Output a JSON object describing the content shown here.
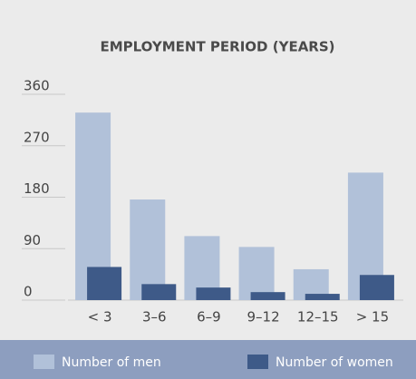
{
  "chart_data": {
    "type": "bar",
    "title": "EMPLOYMENT PERIOD (YEARS)",
    "categories": [
      "< 3",
      "3–6",
      "6–9",
      "9–12",
      "12–15",
      "> 15"
    ],
    "series": [
      {
        "name": "Number of men",
        "color": "#b1c1d9",
        "values": [
          328,
          176,
          112,
          93,
          54,
          223
        ]
      },
      {
        "name": "Number of women",
        "color": "#3e5a88",
        "values": [
          58,
          28,
          22,
          14,
          11,
          44
        ]
      }
    ],
    "ylim": [
      0,
      360
    ],
    "yticks": [
      0,
      90,
      180,
      270,
      360
    ],
    "grid": true,
    "legend": "bottom"
  }
}
